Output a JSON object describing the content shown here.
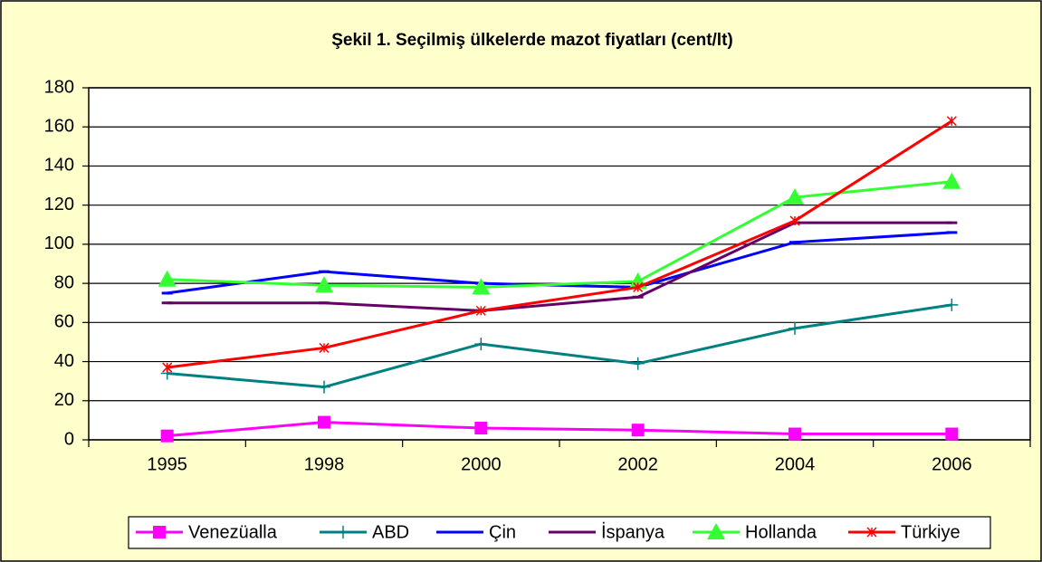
{
  "chart_data": {
    "type": "line",
    "title": "Şekil 1. Seçilmiş ülkelerde mazot fiyatları (cent/lt)",
    "categories": [
      "1995",
      "1998",
      "2000",
      "2002",
      "2004",
      "2006"
    ],
    "series": [
      {
        "name": "Venezüalla",
        "color": "#ff00ff",
        "marker": "square",
        "values": [
          2,
          9,
          6,
          5,
          3,
          3
        ]
      },
      {
        "name": "ABD",
        "color": "#008080",
        "marker": "plus",
        "values": [
          34,
          27,
          49,
          39,
          57,
          69
        ]
      },
      {
        "name": "Çin",
        "color": "#0000ff",
        "marker": "dash",
        "values": [
          75,
          86,
          80,
          78,
          101,
          106
        ]
      },
      {
        "name": "İspanya",
        "color": "#660066",
        "marker": "dash",
        "values": [
          70,
          70,
          66,
          73,
          111,
          111
        ]
      },
      {
        "name": "Hollanda",
        "color": "#33ff33",
        "marker": "triangle",
        "values": [
          82,
          79,
          78,
          81,
          124,
          132
        ]
      },
      {
        "name": "Türkiye",
        "color": "#ff0000",
        "marker": "star",
        "values": [
          37,
          47,
          66,
          78,
          112,
          163
        ]
      }
    ],
    "ylim": [
      0,
      180
    ],
    "yticks": [
      0,
      20,
      40,
      60,
      80,
      100,
      120,
      140,
      160,
      180
    ],
    "grid": true,
    "legend": "bottom"
  }
}
